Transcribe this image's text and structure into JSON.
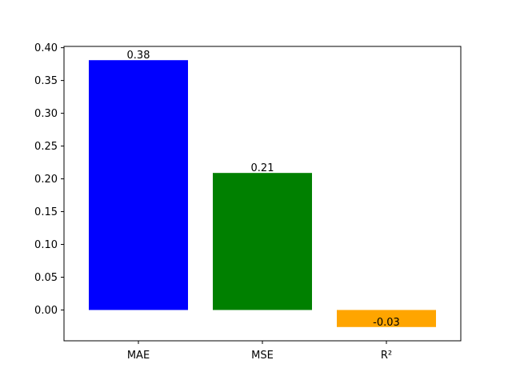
{
  "chart_data": {
    "type": "bar",
    "categories": [
      "MAE",
      "MSE",
      "R²"
    ],
    "values": [
      0.381,
      0.209,
      -0.026
    ],
    "value_labels": [
      "0.38",
      "0.21",
      "-0.03"
    ],
    "colors": [
      "#0000ff",
      "#008000",
      "#ffa500"
    ],
    "title": "",
    "xlabel": "",
    "ylabel": "",
    "ylim": [
      -0.047,
      0.402
    ],
    "yticks": [
      0.0,
      0.05,
      0.1,
      0.15,
      0.2,
      0.25,
      0.3,
      0.35,
      0.4
    ],
    "ytick_labels": [
      "0.00",
      "0.05",
      "0.10",
      "0.15",
      "0.20",
      "0.25",
      "0.30",
      "0.35",
      "0.40"
    ],
    "grid": false,
    "legend": "none"
  }
}
